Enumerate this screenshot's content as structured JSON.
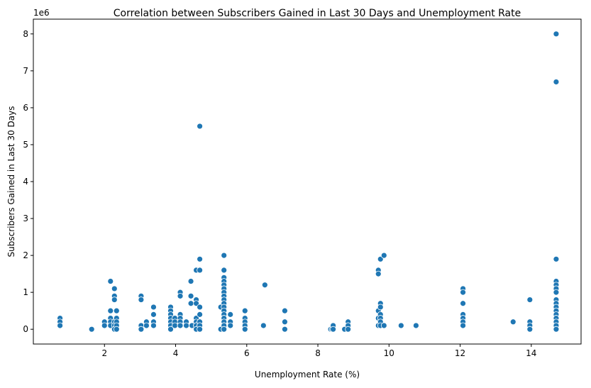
{
  "chart_data": {
    "type": "scatter",
    "title": "Correlation between Subscribers Gained in Last 30 Days and Unemployment Rate",
    "xlabel": "Unemployment Rate (%)",
    "ylabel": "Subscribers Gained in Last 30 Days",
    "y_offset_label": "1e6",
    "xlim": [
      0.0,
      15.4
    ],
    "ylim": [
      -0.4,
      8.4
    ],
    "y_scale_factor": 1000000,
    "xticks": [
      2,
      4,
      6,
      8,
      10,
      12,
      14
    ],
    "xtick_labels": [
      "2",
      "4",
      "6",
      "8",
      "10",
      "12",
      "14"
    ],
    "yticks": [
      0,
      1,
      2,
      3,
      4,
      5,
      6,
      7,
      8
    ],
    "ytick_labels": [
      "0",
      "1",
      "2",
      "3",
      "4",
      "5",
      "6",
      "7",
      "8"
    ],
    "grid": false,
    "marker_color": "#1f77b4",
    "x": [
      0.75,
      0.75,
      0.75,
      1.64,
      2.0,
      2.0,
      2.17,
      2.17,
      2.17,
      2.17,
      2.17,
      2.28,
      2.28,
      2.28,
      2.28,
      2.28,
      2.28,
      2.28,
      2.34,
      2.34,
      2.34,
      2.34,
      2.34,
      3.03,
      3.03,
      3.03,
      3.03,
      3.03,
      3.18,
      3.18,
      3.38,
      3.38,
      3.38,
      3.38,
      3.38,
      3.38,
      3.86,
      3.86,
      3.86,
      3.86,
      3.86,
      3.86,
      3.86,
      3.86,
      3.86,
      3.98,
      3.98,
      3.98,
      4.13,
      4.13,
      4.13,
      4.13,
      4.13,
      4.13,
      4.13,
      4.3,
      4.3,
      4.43,
      4.43,
      4.43,
      4.46,
      4.58,
      4.58,
      4.58,
      4.58,
      4.58,
      4.58,
      4.58,
      4.58,
      4.68,
      4.68,
      4.68,
      4.68,
      4.68,
      4.68,
      4.68,
      4.68,
      4.68,
      4.68,
      5.27,
      5.27,
      5.27,
      5.36,
      5.36,
      5.36,
      5.36,
      5.36,
      5.36,
      5.36,
      5.36,
      5.36,
      5.36,
      5.36,
      5.36,
      5.36,
      5.36,
      5.36,
      5.36,
      5.36,
      5.36,
      5.36,
      5.36,
      5.36,
      5.36,
      5.54,
      5.54,
      5.54,
      5.95,
      5.95,
      5.95,
      5.95,
      5.95,
      5.95,
      6.47,
      6.51,
      7.07,
      7.07,
      7.07,
      8.36,
      8.4,
      8.43,
      8.43,
      8.75,
      8.85,
      8.85,
      8.85,
      8.85,
      8.85,
      9.7,
      9.7,
      9.7,
      9.7,
      9.7,
      9.76,
      9.76,
      9.76,
      9.76,
      9.76,
      9.76,
      9.76,
      9.76,
      9.86,
      9.86,
      10.34,
      10.76,
      12.08,
      12.08,
      12.08,
      12.08,
      12.08,
      12.08,
      12.08,
      12.08,
      13.49,
      13.96,
      13.96,
      13.96,
      13.96,
      13.96,
      14.7,
      14.7,
      14.7,
      14.7,
      14.7,
      14.7,
      14.7,
      14.7,
      14.7,
      14.7,
      14.7,
      14.7,
      14.7,
      14.7,
      14.7,
      14.7,
      14.7,
      14.7,
      14.7,
      14.7,
      14.7
    ],
    "y": [
      0.3,
      0.2,
      0.1,
      0.0,
      0.2,
      0.1,
      1.3,
      0.5,
      0.3,
      0.2,
      0.1,
      1.1,
      0.9,
      0.8,
      0.2,
      0.1,
      0.0,
      0.0,
      0.5,
      0.3,
      0.2,
      0.1,
      0.0,
      0.9,
      0.8,
      0.1,
      0.0,
      0.0,
      0.2,
      0.1,
      0.6,
      0.4,
      0.2,
      0.2,
      0.1,
      0.1,
      0.6,
      0.5,
      0.4,
      0.3,
      0.2,
      0.1,
      0.1,
      0.0,
      0.0,
      0.3,
      0.2,
      0.1,
      1.0,
      0.9,
      0.4,
      0.3,
      0.2,
      0.1,
      0.1,
      0.2,
      0.1,
      1.3,
      0.9,
      0.7,
      0.1,
      1.6,
      0.8,
      0.7,
      0.3,
      0.2,
      0.1,
      0.1,
      0.0,
      5.5,
      1.9,
      1.6,
      0.6,
      0.4,
      0.2,
      0.2,
      0.1,
      0.1,
      0.0,
      0.6,
      0.6,
      0.0,
      2.0,
      1.6,
      1.4,
      1.3,
      1.2,
      1.1,
      1.0,
      0.9,
      0.8,
      0.7,
      0.6,
      0.5,
      0.4,
      0.3,
      0.3,
      0.2,
      0.2,
      0.1,
      0.1,
      0.1,
      0.0,
      0.0,
      0.4,
      0.2,
      0.1,
      0.5,
      0.3,
      0.2,
      0.1,
      0.0,
      0.0,
      0.1,
      1.2,
      0.5,
      0.2,
      0.0,
      0.0,
      0.0,
      0.1,
      0.0,
      0.0,
      0.2,
      0.2,
      0.1,
      0.1,
      0.0,
      1.6,
      1.5,
      0.5,
      0.3,
      0.1,
      1.9,
      0.7,
      0.6,
      0.4,
      0.3,
      0.2,
      0.2,
      0.1,
      2.0,
      0.1,
      0.1,
      0.1,
      1.1,
      1.0,
      0.7,
      0.4,
      0.3,
      0.2,
      0.2,
      0.1,
      0.2,
      0.8,
      0.2,
      0.1,
      0.0,
      0.0,
      8.0,
      6.7,
      1.9,
      1.3,
      1.2,
      1.1,
      1.0,
      0.8,
      0.7,
      0.6,
      0.5,
      0.5,
      0.4,
      0.3,
      0.3,
      0.2,
      0.2,
      0.1,
      0.1,
      0.0,
      0.0
    ]
  }
}
